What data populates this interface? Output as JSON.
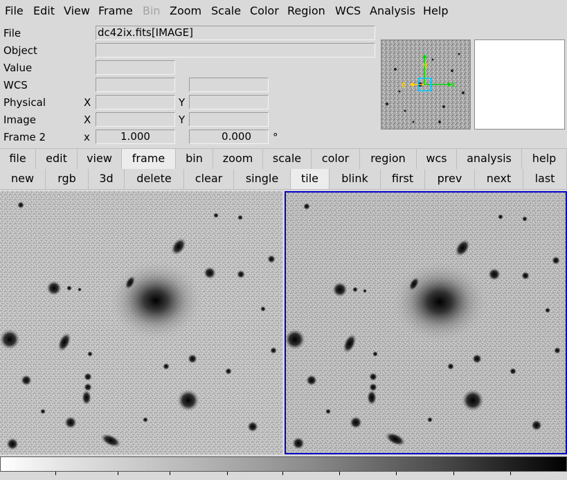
{
  "menubar": {
    "file": "File",
    "edit": "Edit",
    "view": "View",
    "frame": "Frame",
    "bin": "Bin",
    "zoom": "Zoom",
    "scale": "Scale",
    "color": "Color",
    "region": "Region",
    "wcs": "WCS",
    "analysis": "Analysis",
    "help": "Help"
  },
  "info": {
    "file_label": "File",
    "file_value": "dc42ix.fits[IMAGE]",
    "object_label": "Object",
    "object_value": "",
    "value_label": "Value",
    "value_value": "",
    "wcs_label": "WCS",
    "wcs_x": "",
    "wcs_y": "",
    "physical_label": "Physical",
    "physical_x_axis": "X",
    "physical_y_axis": "Y",
    "physical_x": "",
    "physical_y": "",
    "image_label": "Image",
    "image_x_axis": "X",
    "image_y_axis": "Y",
    "image_x": "",
    "image_y": "",
    "frame_label": "Frame 2",
    "frame_zoom_axis": "x",
    "frame_zoom": "1.000",
    "frame_angle": "0.000",
    "frame_angle_unit": "°"
  },
  "panner": {
    "compass_n": "N",
    "compass_e": "E",
    "compass_x": "X",
    "compass_y": "Y",
    "compass_color_ne": "#ffd400",
    "compass_color_xy": "#00d400",
    "bbox_color": "#00c8ff"
  },
  "buttonbar_main": {
    "file": "file",
    "edit": "edit",
    "view": "view",
    "frame": "frame",
    "bin": "bin",
    "zoom": "zoom",
    "scale": "scale",
    "color": "color",
    "region": "region",
    "wcs": "wcs",
    "analysis": "analysis",
    "help": "help",
    "active": "frame"
  },
  "buttonbar_frame": {
    "new": "new",
    "rgb": "rgb",
    "3d": "3d",
    "delete": "delete",
    "clear": "clear",
    "single": "single",
    "tile": "tile",
    "blink": "blink",
    "first": "first",
    "prev": "prev",
    "next": "next",
    "last": "last",
    "active": "tile"
  },
  "frames": {
    "current_frame_border_color": "#0000c8"
  },
  "colorbar": {
    "colormap": "grey-inverted"
  }
}
